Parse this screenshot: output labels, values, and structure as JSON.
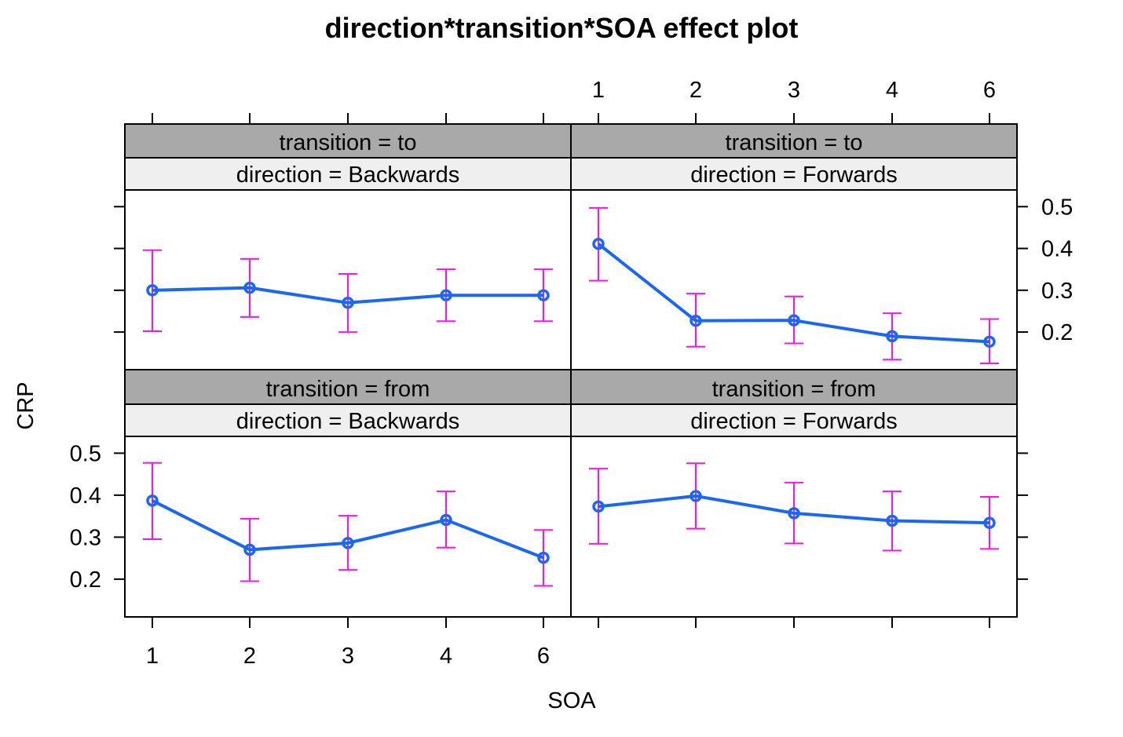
{
  "chart_data": {
    "type": "line",
    "title": "direction*transition*SOA effect plot",
    "xlabel": "SOA",
    "ylabel": "CRP",
    "categories": [
      "1",
      "2",
      "3",
      "4",
      "6"
    ],
    "ylim": [
      0.11,
      0.54
    ],
    "yticks": [
      "0.2",
      "0.3",
      "0.4",
      "0.5"
    ],
    "colors": {
      "line": "#1a66f5",
      "errorbar": "#ff10f0",
      "strip_outer": "#a9a9a9",
      "strip_inner": "#efefef"
    },
    "panels": [
      {
        "transition_label": "transition = to",
        "direction_label": "direction = Backwards",
        "values": [
          0.3,
          0.306,
          0.27,
          0.288,
          0.288
        ],
        "lower": [
          0.202,
          0.236,
          0.2,
          0.226,
          0.226
        ],
        "upper": [
          0.396,
          0.375,
          0.339,
          0.35,
          0.35
        ]
      },
      {
        "transition_label": "transition = to",
        "direction_label": "direction = Forwards",
        "values": [
          0.411,
          0.227,
          0.228,
          0.19,
          0.177
        ],
        "lower": [
          0.323,
          0.165,
          0.173,
          0.134,
          0.125
        ],
        "upper": [
          0.497,
          0.292,
          0.285,
          0.245,
          0.231
        ]
      },
      {
        "transition_label": "transition = from",
        "direction_label": "direction = Backwards",
        "values": [
          0.387,
          0.27,
          0.286,
          0.341,
          0.251
        ],
        "lower": [
          0.295,
          0.195,
          0.222,
          0.275,
          0.184
        ],
        "upper": [
          0.477,
          0.344,
          0.351,
          0.409,
          0.317
        ]
      },
      {
        "transition_label": "transition = from",
        "direction_label": "direction = Forwards",
        "values": [
          0.373,
          0.398,
          0.357,
          0.339,
          0.334
        ],
        "lower": [
          0.284,
          0.32,
          0.285,
          0.268,
          0.272
        ],
        "upper": [
          0.463,
          0.476,
          0.43,
          0.409,
          0.396
        ]
      }
    ]
  }
}
